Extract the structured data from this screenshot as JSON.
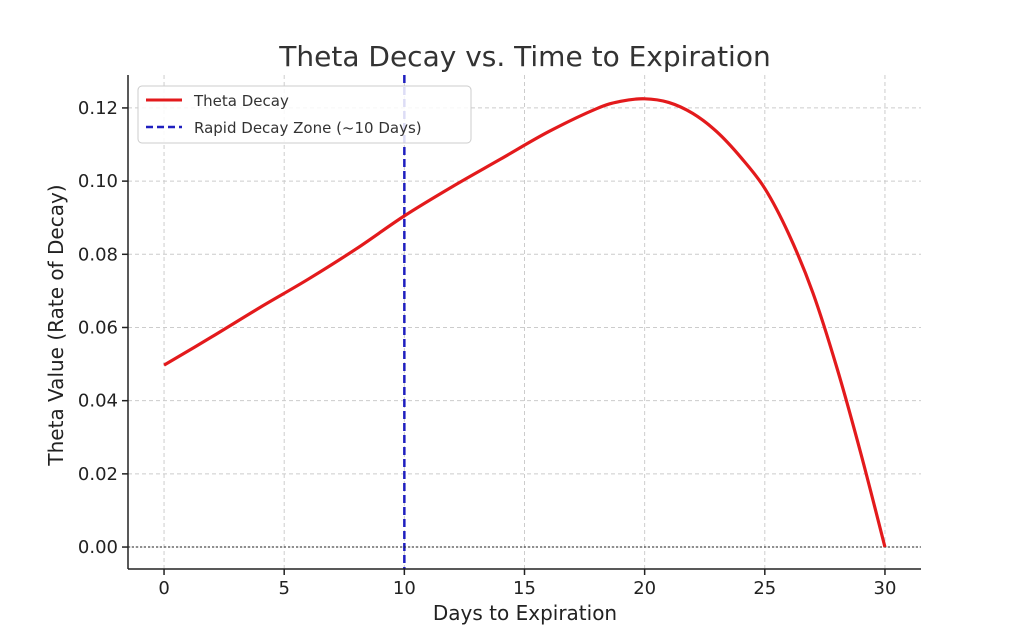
{
  "chart_data": {
    "type": "line",
    "title": "Theta Decay vs. Time to Expiration",
    "xlabel": "Days to Expiration",
    "ylabel": "Theta Value (Rate of Decay)",
    "xlim": [
      -1.5,
      31.5
    ],
    "ylim": [
      -0.006,
      0.129
    ],
    "xticks": [
      0,
      5,
      10,
      15,
      20,
      25,
      30
    ],
    "xtick_labels": [
      "0",
      "5",
      "10",
      "15",
      "20",
      "25",
      "30"
    ],
    "yticks": [
      0.0,
      0.02,
      0.04,
      0.06,
      0.08,
      0.1,
      0.12
    ],
    "ytick_labels": [
      "0.00",
      "0.02",
      "0.04",
      "0.06",
      "0.08",
      "0.10",
      "0.12"
    ],
    "grid": true,
    "series": [
      {
        "name": "Theta Decay",
        "color": "#e31a1c",
        "style": "solid",
        "x": [
          0,
          2,
          4,
          6,
          8,
          10,
          12,
          14,
          16,
          18,
          19,
          20,
          21,
          22,
          23,
          24,
          25,
          26,
          27,
          28,
          29,
          30
        ],
        "y": [
          0.0497,
          0.0575,
          0.0655,
          0.0732,
          0.0815,
          0.0905,
          0.0985,
          0.106,
          0.1135,
          0.1198,
          0.1218,
          0.1225,
          0.1215,
          0.1185,
          0.1135,
          0.1065,
          0.098,
          0.0855,
          0.0695,
          0.049,
          0.0255,
          0.0
        ]
      }
    ],
    "reference_lines": [
      {
        "name": "Rapid Decay Zone (~10 Days)",
        "orientation": "vertical",
        "x": 10,
        "color": "#1f1fbf",
        "style": "dashed"
      },
      {
        "name": "zero line",
        "orientation": "horizontal",
        "y": 0,
        "color": "#222222",
        "style": "dotted"
      }
    ],
    "legend": {
      "position": "top-left",
      "entries": [
        {
          "label": "Theta Decay",
          "color": "#e31a1c",
          "style": "solid"
        },
        {
          "label": "Rapid Decay Zone (~10 Days)",
          "color": "#1f1fbf",
          "style": "dashed"
        }
      ]
    }
  }
}
